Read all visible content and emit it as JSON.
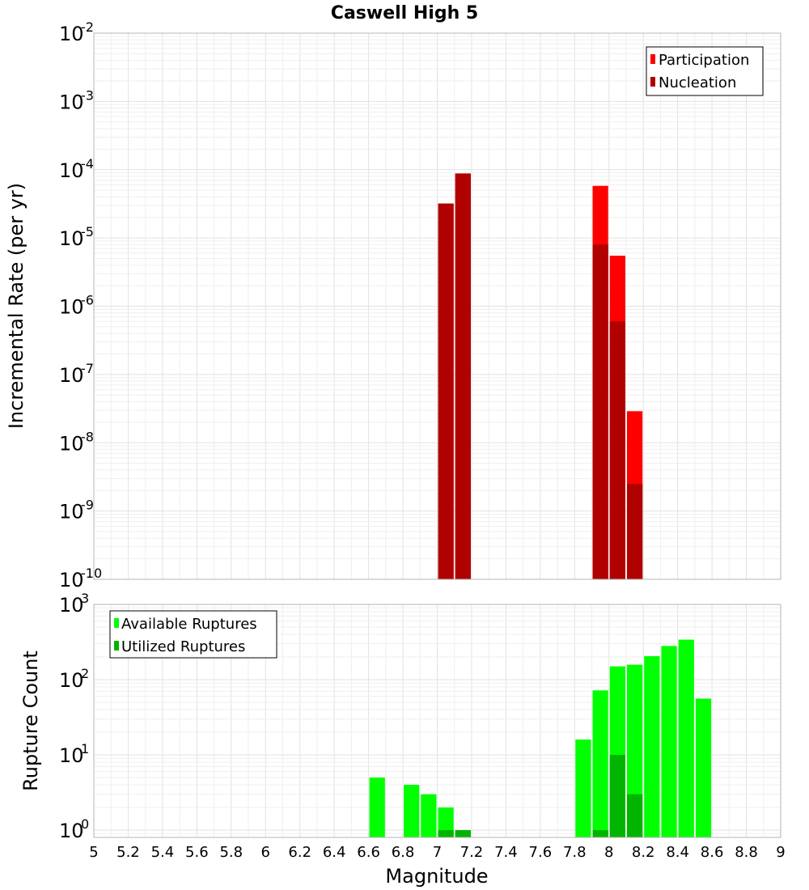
{
  "chart_data": [
    {
      "type": "bar",
      "title": "Caswell High 5",
      "xlabel": "Magnitude",
      "ylabel": "Incremental Rate (per yr)",
      "yscale": "log",
      "xlim": [
        5,
        9
      ],
      "ylim": [
        1e-10,
        0.01
      ],
      "bin_width": 0.1,
      "grid": true,
      "legend_position": "top-right",
      "xticks": [
        "5",
        "5.2",
        "5.4",
        "5.6",
        "5.8",
        "6",
        "6.2",
        "6.4",
        "6.6",
        "6.8",
        "7",
        "7.2",
        "7.4",
        "7.6",
        "7.8",
        "8",
        "8.2",
        "8.4",
        "8.6",
        "8.8",
        "9"
      ],
      "yticks": [
        {
          "base": "10",
          "exp": "-10"
        },
        {
          "base": "10",
          "exp": "-9"
        },
        {
          "base": "10",
          "exp": "-8"
        },
        {
          "base": "10",
          "exp": "-7"
        },
        {
          "base": "10",
          "exp": "-6"
        },
        {
          "base": "10",
          "exp": "-5"
        },
        {
          "base": "10",
          "exp": "-4"
        },
        {
          "base": "10",
          "exp": "-3"
        },
        {
          "base": "10",
          "exp": "-2"
        }
      ],
      "series": [
        {
          "name": "Participation",
          "color": "#ff0000",
          "x": [
            7.05,
            7.15,
            7.95,
            8.05,
            8.15
          ],
          "values": [
            3.2e-05,
            8.8e-05,
            5.8e-05,
            5.5e-06,
            2.9e-08
          ]
        },
        {
          "name": "Nucleation",
          "color": "#b00000",
          "x": [
            7.05,
            7.15,
            7.95,
            8.05,
            8.15
          ],
          "values": [
            3.2e-05,
            8.8e-05,
            8e-06,
            6e-07,
            2.5e-09
          ]
        }
      ]
    },
    {
      "type": "bar",
      "title": "",
      "xlabel": "Magnitude",
      "ylabel": "Rupture Count",
      "yscale": "log",
      "xlim": [
        5,
        9
      ],
      "ylim": [
        0.8,
        1000
      ],
      "bin_width": 0.1,
      "grid": true,
      "legend_position": "top-left",
      "yticks": [
        {
          "base": "10",
          "exp": "0"
        },
        {
          "base": "10",
          "exp": "1"
        },
        {
          "base": "10",
          "exp": "2"
        },
        {
          "base": "10",
          "exp": "3"
        }
      ],
      "series": [
        {
          "name": "Available Ruptures",
          "color": "#00ff00",
          "x": [
            6.65,
            6.85,
            6.95,
            7.05,
            7.15,
            7.85,
            7.95,
            8.05,
            8.15,
            8.25,
            8.35,
            8.45,
            8.55
          ],
          "values": [
            5,
            4,
            3,
            2,
            1,
            16,
            72,
            150,
            158,
            205,
            280,
            340,
            56
          ]
        },
        {
          "name": "Utilized Ruptures",
          "color": "#00b400",
          "x": [
            7.05,
            7.15,
            7.95,
            8.05,
            8.15
          ],
          "values": [
            1,
            1,
            1,
            10,
            3
          ]
        }
      ]
    }
  ]
}
